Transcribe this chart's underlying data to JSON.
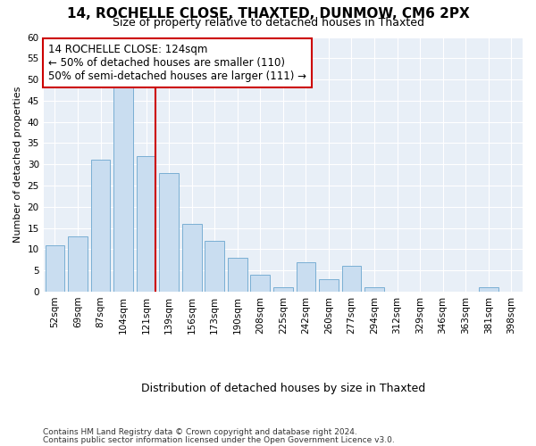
{
  "title1": "14, ROCHELLE CLOSE, THAXTED, DUNMOW, CM6 2PX",
  "title2": "Size of property relative to detached houses in Thaxted",
  "xlabel": "Distribution of detached houses by size in Thaxted",
  "ylabel": "Number of detached properties",
  "categories": [
    "52sqm",
    "69sqm",
    "87sqm",
    "104sqm",
    "121sqm",
    "139sqm",
    "156sqm",
    "173sqm",
    "190sqm",
    "208sqm",
    "225sqm",
    "242sqm",
    "260sqm",
    "277sqm",
    "294sqm",
    "312sqm",
    "329sqm",
    "346sqm",
    "363sqm",
    "381sqm",
    "398sqm"
  ],
  "values": [
    11,
    13,
    31,
    49,
    32,
    28,
    16,
    12,
    8,
    4,
    1,
    7,
    3,
    6,
    1,
    0,
    0,
    0,
    0,
    1,
    0
  ],
  "bar_color": "#c9ddf0",
  "bar_edge_color": "#7aafd4",
  "highlight_index": 4,
  "highlight_color": "#cc0000",
  "ylim": [
    0,
    60
  ],
  "yticks": [
    0,
    5,
    10,
    15,
    20,
    25,
    30,
    35,
    40,
    45,
    50,
    55,
    60
  ],
  "annotation_text": "14 ROCHELLE CLOSE: 124sqm\n← 50% of detached houses are smaller (110)\n50% of semi-detached houses are larger (111) →",
  "annotation_box_facecolor": "#ffffff",
  "annotation_box_edgecolor": "#cc0000",
  "figure_facecolor": "#ffffff",
  "axes_facecolor": "#e8eff7",
  "grid_color": "#ffffff",
  "footer1": "Contains HM Land Registry data © Crown copyright and database right 2024.",
  "footer2": "Contains public sector information licensed under the Open Government Licence v3.0.",
  "title1_fontsize": 11,
  "title2_fontsize": 9,
  "ylabel_fontsize": 8,
  "xlabel_fontsize": 9,
  "tick_fontsize": 7.5,
  "footer_fontsize": 6.5,
  "annot_fontsize": 8.5
}
